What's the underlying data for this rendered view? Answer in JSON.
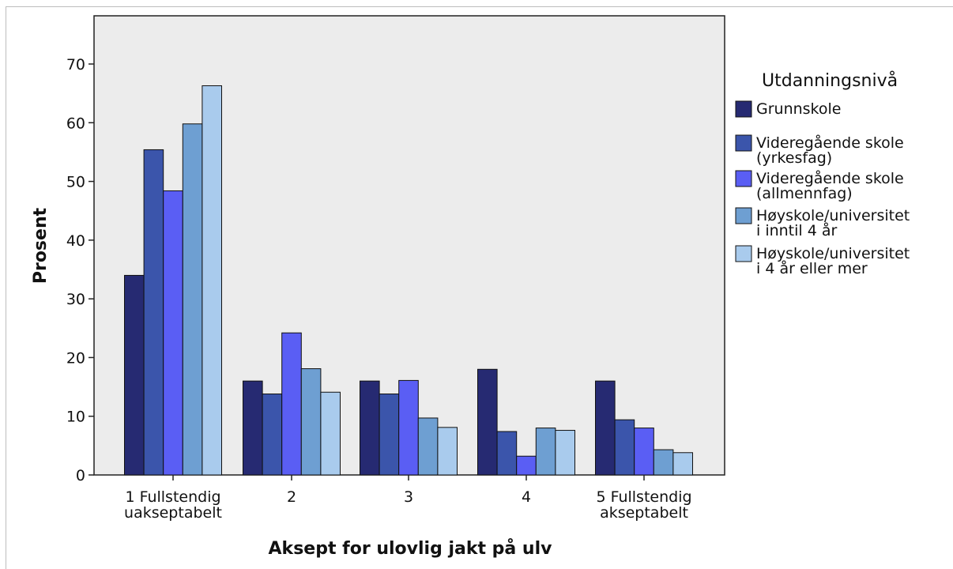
{
  "chart_data": {
    "type": "bar",
    "categories": [
      [
        "1 Fullstendig",
        "uakseptabelt"
      ],
      [
        "2"
      ],
      [
        "3"
      ],
      [
        "4"
      ],
      [
        "5 Fullstendig",
        "akseptabelt"
      ]
    ],
    "series": [
      {
        "name": [
          "Grunnskole"
        ],
        "color": "#262a72",
        "values": [
          34,
          16,
          16,
          18,
          16
        ]
      },
      {
        "name": [
          "Videregående skole",
          "(yrkesfag)"
        ],
        "color": "#3b55ab",
        "values": [
          55.4,
          13.8,
          13.8,
          7.4,
          9.4
        ]
      },
      {
        "name": [
          "Videregående skole",
          "(allmennfag)"
        ],
        "color": "#5a5ef4",
        "values": [
          48.4,
          24.2,
          16.1,
          3.2,
          8.0
        ]
      },
      {
        "name": [
          "Høyskole/universitet",
          "i inntil 4 år"
        ],
        "color": "#6e9fd2",
        "values": [
          59.8,
          18.1,
          9.7,
          8.0,
          4.3
        ]
      },
      {
        "name": [
          "Høyskole/universitet",
          "i 4 år eller mer"
        ],
        "color": "#a9cbed",
        "values": [
          66.3,
          14.1,
          8.1,
          7.6,
          3.8
        ]
      }
    ],
    "xlabel": "Aksept for ulovlig jakt på ulv",
    "ylabel": "Prosent",
    "legend_title": "Utdanningsnivå",
    "yticks": [
      0,
      10,
      20,
      30,
      40,
      50,
      60,
      70
    ],
    "ylim": [
      0,
      78
    ],
    "legend_position": "right",
    "grid": false,
    "plot_background": "#ececec",
    "bar_outline": "#111111"
  }
}
